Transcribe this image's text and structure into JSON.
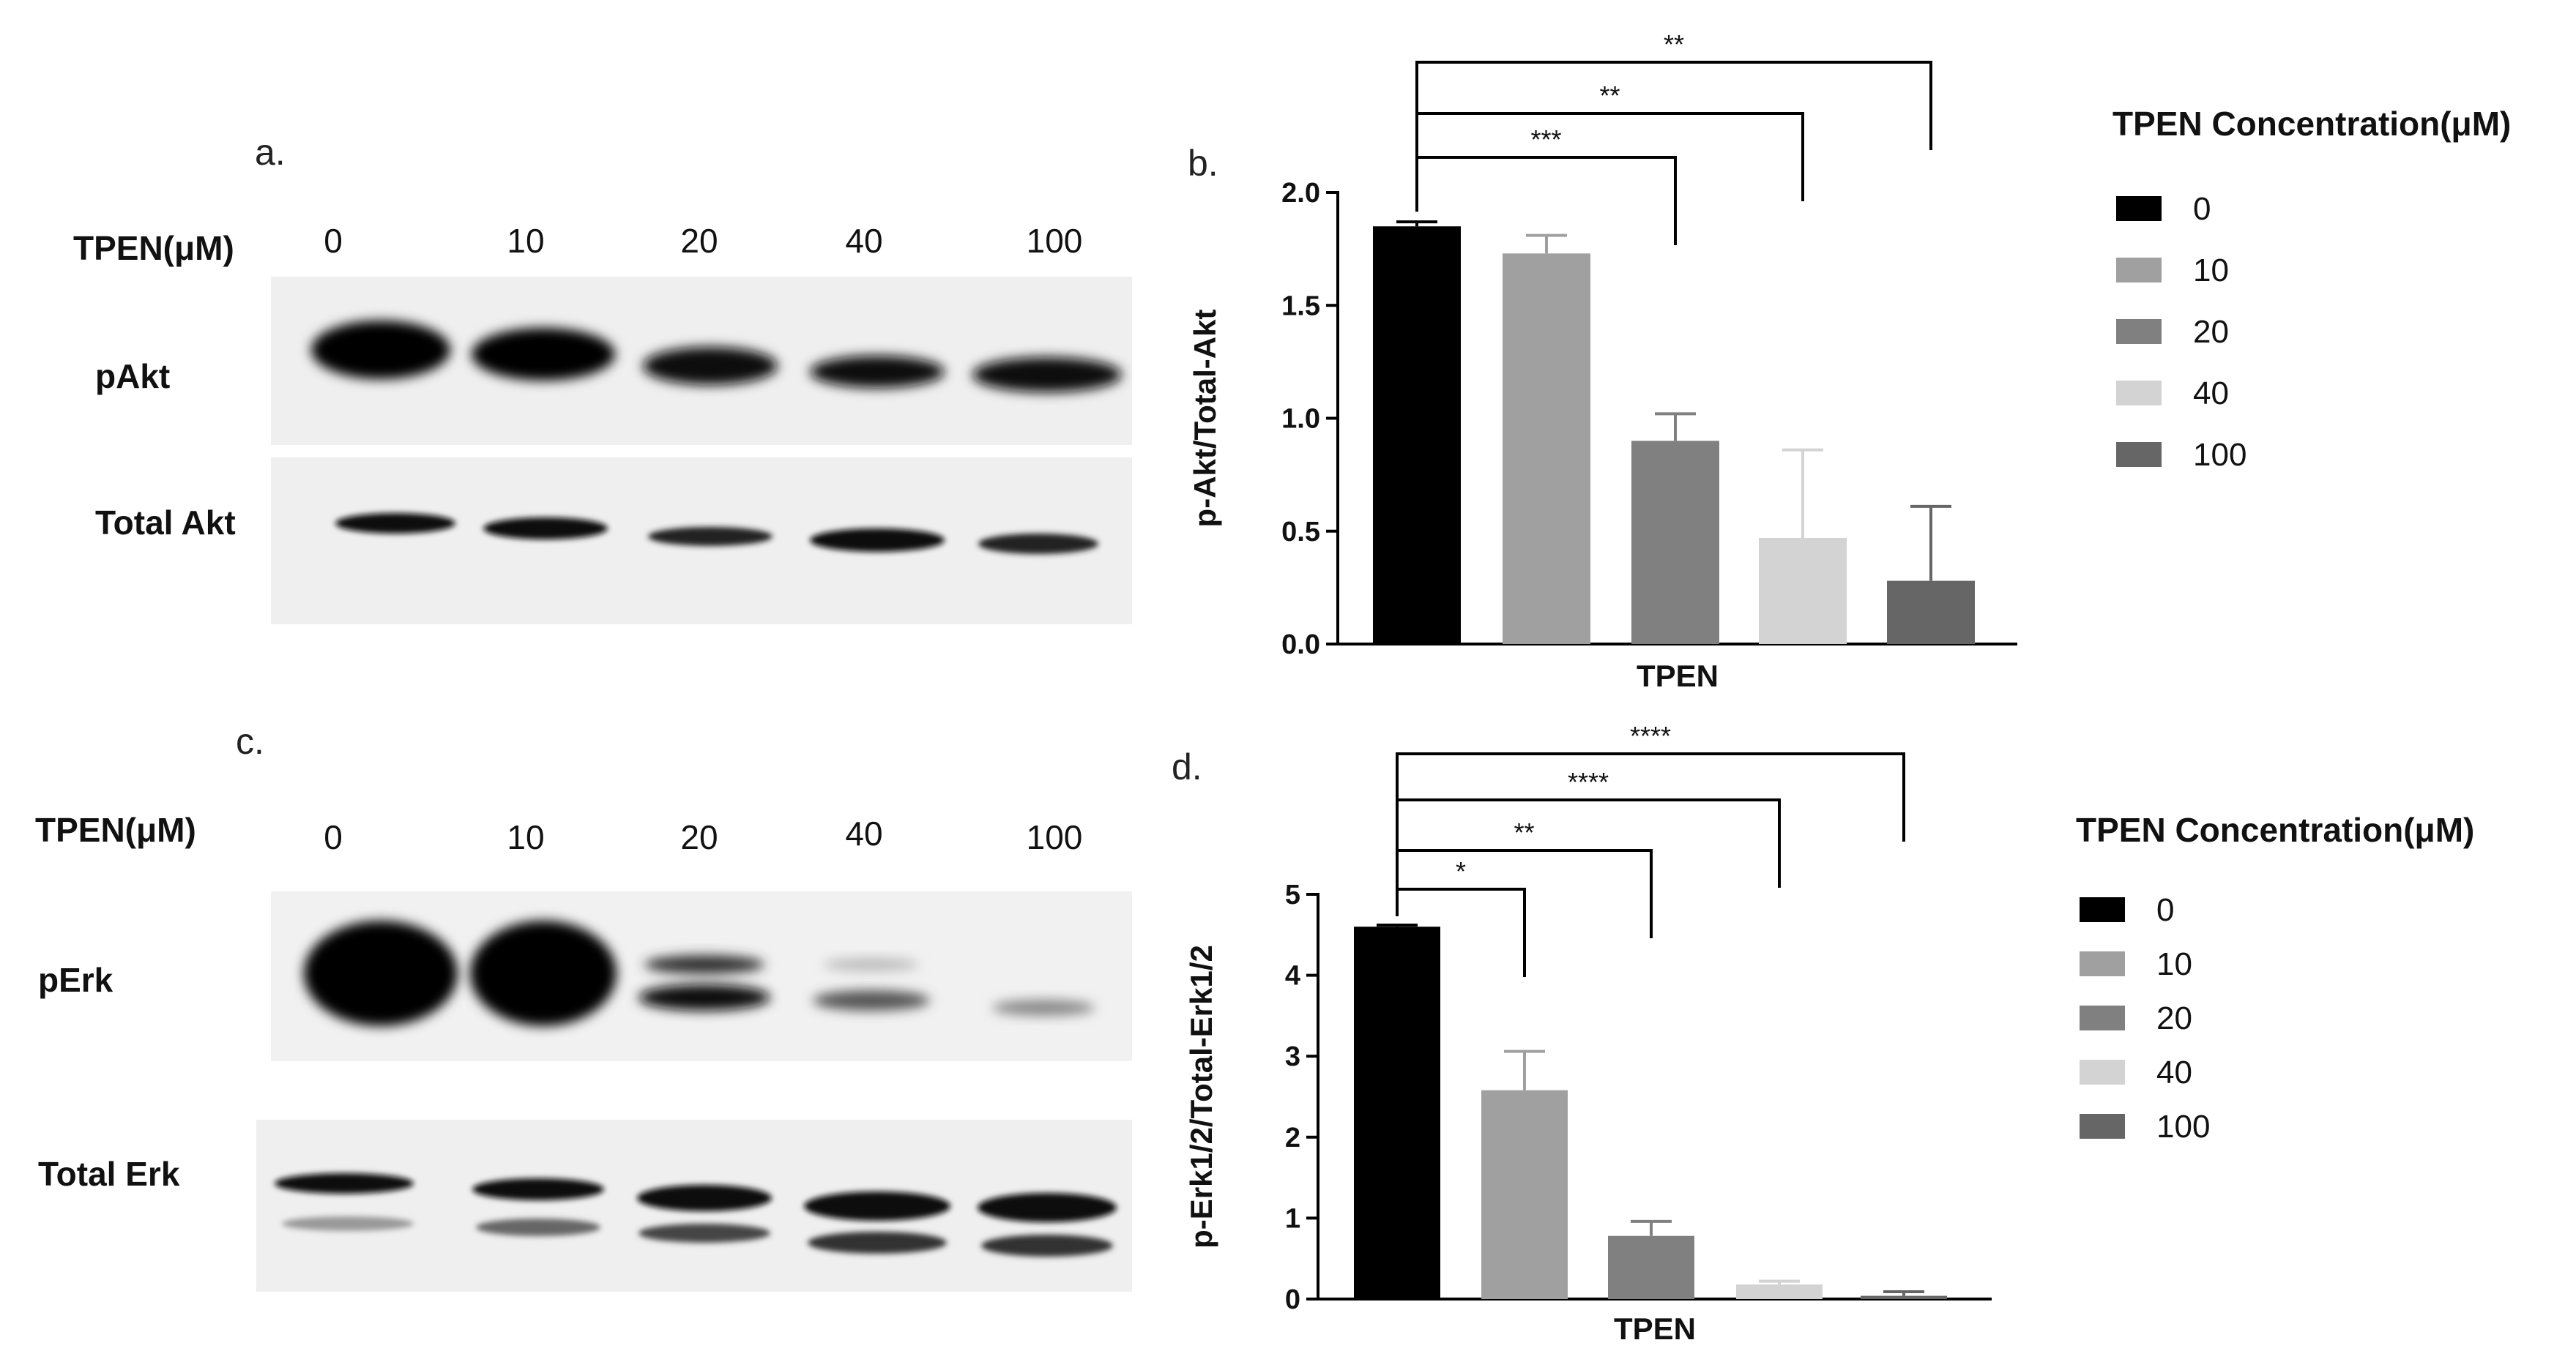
{
  "panels": {
    "a": {
      "letter": "a.",
      "header_label": "TPEN(μM)",
      "lanes": [
        "0",
        "10",
        "20",
        "40",
        "100"
      ],
      "row1_label": "pAkt",
      "row2_label": "Total Akt"
    },
    "c": {
      "letter": "c.",
      "header_label": "TPEN(μM)",
      "lanes": [
        "0",
        "10",
        "20",
        "40",
        "100"
      ],
      "row1_label": "pErk",
      "row2_label": "Total Erk"
    },
    "b": {
      "letter": "b."
    },
    "d": {
      "letter": "d."
    }
  },
  "colors": {
    "c0": "#000000",
    "c10": "#a0a0a0",
    "c20": "#808080",
    "c40": "#d3d3d3",
    "c100": "#666666"
  },
  "chart_data": [
    {
      "id": "b",
      "type": "bar",
      "xlabel": "TPEN",
      "ylabel": "p-Akt/Total-Akt",
      "ylim": [
        0,
        2.0
      ],
      "yticks": [
        "0.0",
        "0.5",
        "1.0",
        "1.5",
        "2.0"
      ],
      "categories": [
        "0",
        "10",
        "20",
        "40",
        "100"
      ],
      "values": [
        1.85,
        1.73,
        0.9,
        0.47,
        0.28
      ],
      "errors": [
        0.02,
        0.08,
        0.12,
        0.39,
        0.33
      ],
      "legend_title": "TPEN Concentration(μM)",
      "legend_placement": "right",
      "grid": false,
      "significance": [
        {
          "from": "0",
          "to": "20",
          "label": "***"
        },
        {
          "from": "0",
          "to": "40",
          "label": "**"
        },
        {
          "from": "0",
          "to": "100",
          "label": "**"
        }
      ]
    },
    {
      "id": "d",
      "type": "bar",
      "xlabel": "TPEN",
      "ylabel": "p-Erk1/2/Total-Erk1/2",
      "ylim": [
        0,
        5
      ],
      "yticks": [
        "0",
        "1",
        "2",
        "3",
        "4",
        "5"
      ],
      "categories": [
        "0",
        "10",
        "20",
        "40",
        "100"
      ],
      "values": [
        4.6,
        2.58,
        0.78,
        0.18,
        0.04
      ],
      "errors": [
        0.02,
        0.48,
        0.18,
        0.04,
        0.05
      ],
      "legend_title": "TPEN Concentration(μM)",
      "legend_placement": "right",
      "grid": false,
      "significance": [
        {
          "from": "0",
          "to": "10",
          "label": "*"
        },
        {
          "from": "0",
          "to": "20",
          "label": "**"
        },
        {
          "from": "0",
          "to": "40",
          "label": "****"
        },
        {
          "from": "0",
          "to": "100",
          "label": "****"
        }
      ]
    }
  ]
}
